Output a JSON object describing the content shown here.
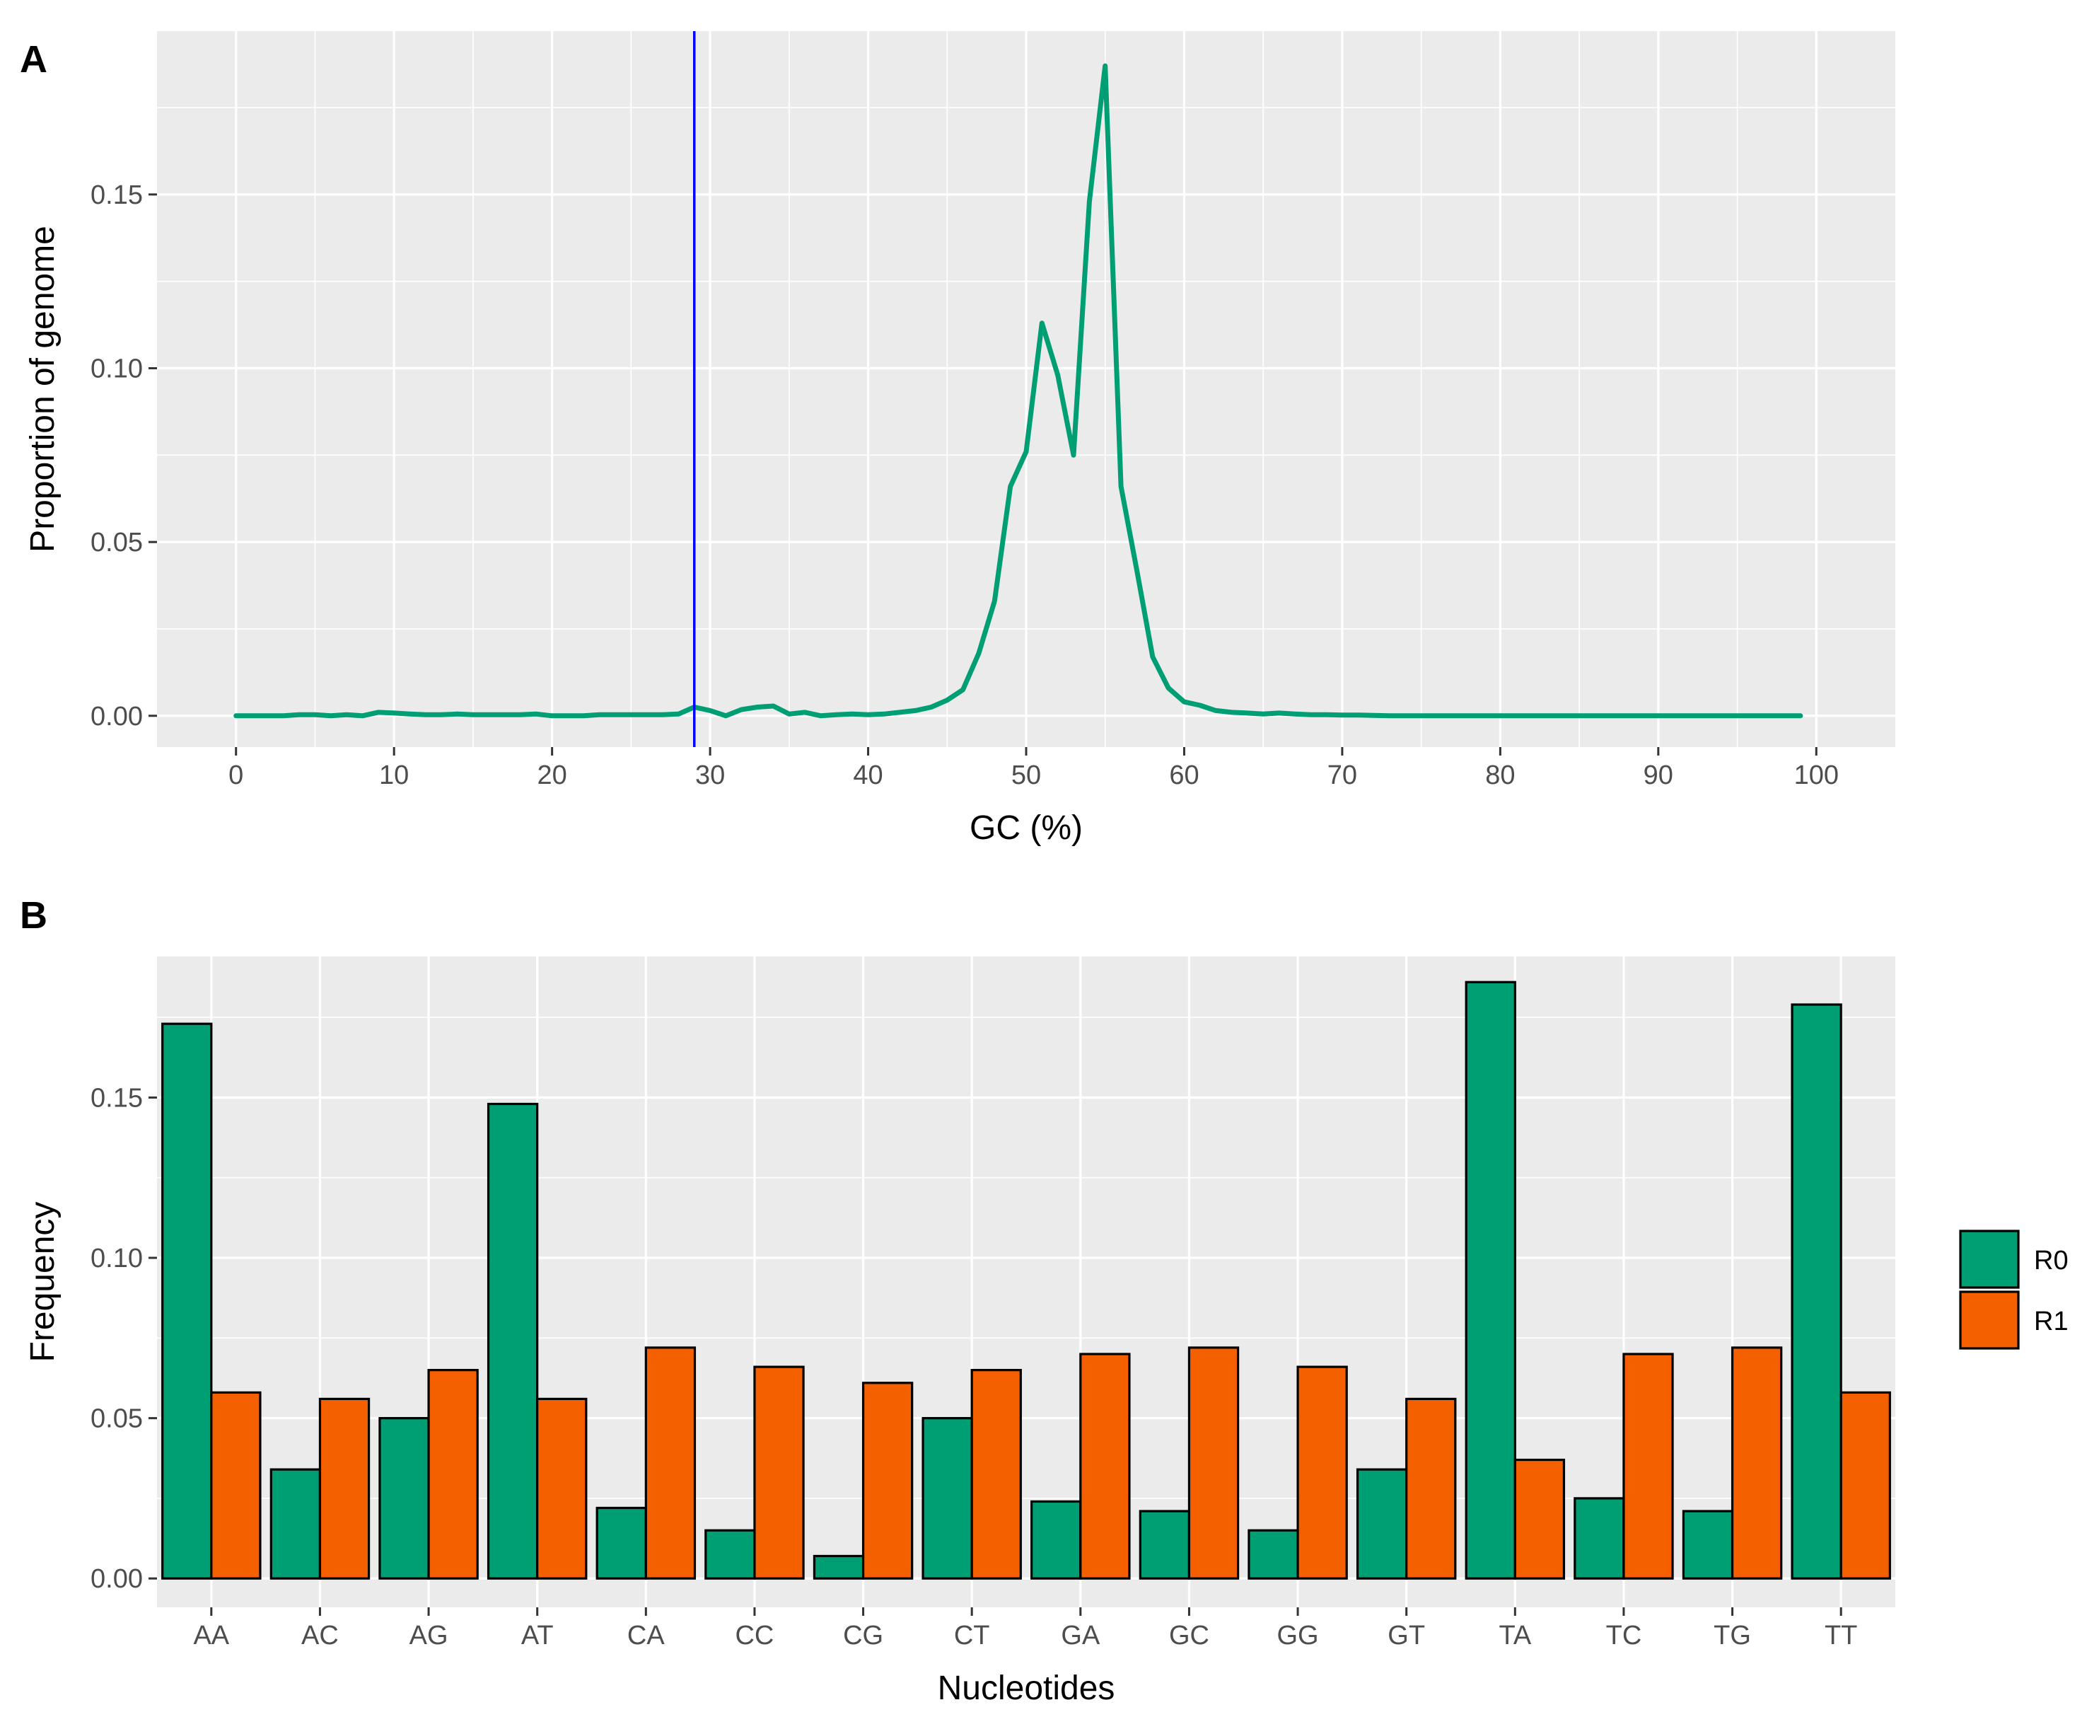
{
  "chart_data": [
    {
      "panel": "A",
      "type": "line",
      "xlabel": "GC (%)",
      "ylabel": "Proportion of genome",
      "xlim": [
        -5,
        105
      ],
      "ylim": [
        -0.009,
        0.197
      ],
      "x_ticks": [
        0,
        10,
        20,
        30,
        40,
        50,
        60,
        70,
        80,
        90,
        100
      ],
      "y_ticks": [
        0.0,
        0.05,
        0.1,
        0.15
      ],
      "y_tick_labels": [
        "0.00",
        "0.05",
        "0.10",
        "0.15"
      ],
      "vline": {
        "x": 29,
        "color": "#0000ff"
      },
      "line_color": "#009e73",
      "series": [
        {
          "name": "GC",
          "x": [
            0,
            1,
            2,
            3,
            4,
            5,
            6,
            7,
            8,
            9,
            10,
            11,
            12,
            13,
            14,
            15,
            16,
            17,
            18,
            19,
            20,
            21,
            22,
            23,
            24,
            25,
            26,
            27,
            28,
            29,
            30,
            31,
            32,
            33,
            34,
            35,
            36,
            37,
            38,
            39,
            40,
            41,
            42,
            43,
            44,
            45,
            46,
            47,
            48,
            49,
            50,
            51,
            52,
            53,
            54,
            55,
            56,
            57,
            58,
            59,
            60,
            61,
            62,
            63,
            64,
            65,
            66,
            67,
            68,
            69,
            70,
            71,
            72,
            73,
            74,
            75,
            76,
            77,
            78,
            79,
            80,
            81,
            82,
            83,
            84,
            85,
            86,
            87,
            88,
            89,
            90,
            91,
            92,
            93,
            94,
            95,
            96,
            97,
            98,
            99
          ],
          "y": [
            0,
            0,
            0,
            0,
            0.0003,
            0.0003,
            0,
            0.0003,
            0,
            0.001,
            0.0008,
            0.0005,
            0.0003,
            0.0003,
            0.0005,
            0.0003,
            0.0003,
            0.0003,
            0.0003,
            0.0005,
            0,
            0,
            0,
            0.0003,
            0.0003,
            0.0003,
            0.0003,
            0.0003,
            0.0005,
            0.0025,
            0.0015,
            0,
            0.0018,
            0.0025,
            0.0028,
            0.0005,
            0.001,
            0,
            0.0003,
            0.0005,
            0.0003,
            0.0005,
            0.001,
            0.0015,
            0.0025,
            0.0045,
            0.0075,
            0.018,
            0.033,
            0.066,
            0.076,
            0.113,
            0.098,
            0.075,
            0.148,
            0.187,
            0.066,
            0.042,
            0.017,
            0.008,
            0.004,
            0.003,
            0.0015,
            0.001,
            0.0008,
            0.0005,
            0.0008,
            0.0005,
            0.0003,
            0.0003,
            0.0002,
            0.0002,
            0.0001,
            0,
            0,
            0,
            0,
            0,
            0,
            0,
            0,
            0,
            0,
            0,
            0,
            0,
            0,
            0,
            0,
            0,
            0,
            0,
            0,
            0,
            0,
            0,
            0,
            0,
            0,
            0
          ]
        }
      ]
    },
    {
      "panel": "B",
      "type": "bar",
      "xlabel": "Nucleotides",
      "ylabel": "Frequency",
      "ylim": [
        -0.009,
        0.194
      ],
      "y_ticks": [
        0.0,
        0.05,
        0.1,
        0.15
      ],
      "y_tick_labels": [
        "0.00",
        "0.05",
        "0.10",
        "0.15"
      ],
      "categories": [
        "AA",
        "AC",
        "AG",
        "AT",
        "CA",
        "CC",
        "CG",
        "CT",
        "GA",
        "GC",
        "GG",
        "GT",
        "TA",
        "TC",
        "TG",
        "TT"
      ],
      "series": [
        {
          "name": "R0",
          "color": "#009e73",
          "values": [
            0.173,
            0.034,
            0.05,
            0.148,
            0.022,
            0.015,
            0.007,
            0.05,
            0.024,
            0.021,
            0.015,
            0.034,
            0.186,
            0.025,
            0.021,
            0.179
          ]
        },
        {
          "name": "R1",
          "color": "#f45f00",
          "values": [
            0.058,
            0.056,
            0.065,
            0.056,
            0.072,
            0.066,
            0.061,
            0.065,
            0.07,
            0.072,
            0.066,
            0.056,
            0.037,
            0.07,
            0.072,
            0.058
          ]
        }
      ],
      "legend": {
        "position": "right",
        "entries": [
          "R0",
          "R1"
        ]
      }
    }
  ]
}
